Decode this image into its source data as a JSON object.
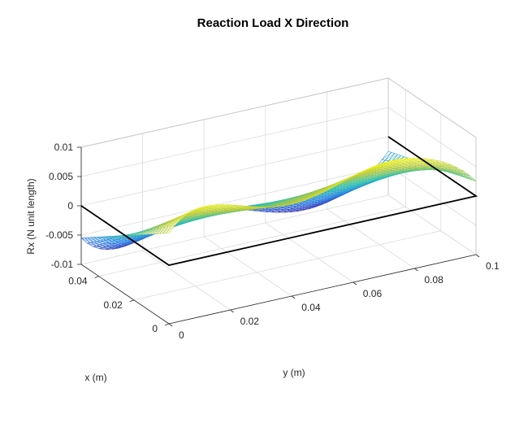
{
  "chart_data": {
    "type": "surface",
    "title": "Reaction Load X Direction",
    "xlabel": "x (m)",
    "ylabel": "y (m)",
    "zlabel": "Rx (N unit length)",
    "xlim": [
      0,
      0.05
    ],
    "ylim": [
      0,
      0.1
    ],
    "zlim": [
      -0.01,
      0.01
    ],
    "x_ticks": [
      "0",
      "0.02",
      "0.04"
    ],
    "y_ticks": [
      "0",
      "0.02",
      "0.04",
      "0.06",
      "0.08",
      "0.1"
    ],
    "z_ticks": [
      "0.01",
      "0.005",
      "0",
      "-0.005",
      "-0.01"
    ],
    "grid": true,
    "colormap": "parula",
    "colors": {
      "low": "#3e26a8",
      "mid": "#2cc0b0",
      "high": "#f9fb0e"
    },
    "surface": {
      "description_values": {
        "max": 0.01,
        "min": -0.01,
        "at_x_min": 0.0075,
        "at_x_max": -0.0075
      }
    }
  }
}
